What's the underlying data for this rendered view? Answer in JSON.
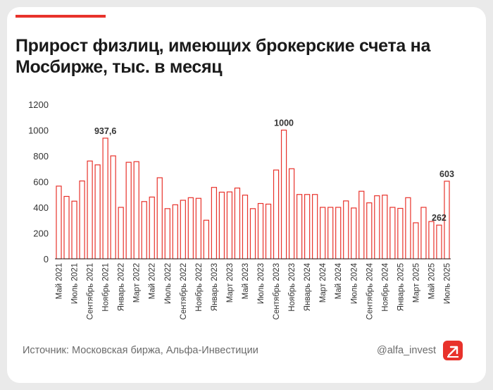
{
  "title": "Прирост физлиц, имеющих брокерские счета на Мосбирже, тыс. в месяц",
  "source": "Источник: Московская биржа, Альфа-Инвестиции",
  "handle": "@alfa_invest",
  "logo_icon": "alfa-logo-icon",
  "colors": {
    "accent": "#e8322b",
    "bar_stroke": "#e8322b",
    "bar_fill": "#ffffff",
    "axis_text": "#333333"
  },
  "chart_data": {
    "type": "bar",
    "title": "Прирост физлиц, имеющих брокерские счета на Мосбирже, тыс. в месяц",
    "xlabel": "",
    "ylabel": "",
    "ylim": [
      0,
      1200
    ],
    "yticks": [
      0,
      200,
      400,
      600,
      800,
      1000,
      1200
    ],
    "grid": false,
    "categories": [
      "Май 2021",
      "Июнь 2021",
      "Июль 2021",
      "Август 2021",
      "Сентябрь 2021",
      "Октябрь 2021",
      "Ноябрь 2021",
      "Декабрь 2021",
      "Январь 2022",
      "Февраль 2022",
      "Март 2022",
      "Апрель 2022",
      "Май 2022",
      "Июнь 2022",
      "Июль 2022",
      "Август 2022",
      "Сентябрь 2022",
      "Октябрь 2022",
      "Ноябрь 2022",
      "Декабрь 2022",
      "Январь 2023",
      "Февраль 2023",
      "Март 2023",
      "Апрель 2023",
      "Май 2023",
      "Июнь 2023",
      "Июль 2023",
      "Август 2023",
      "Сентябрь 2023",
      "Октябрь 2023",
      "Ноябрь 2023",
      "Декабрь 2023",
      "Январь 2024",
      "Февраль 2024",
      "Март 2024",
      "Апрель 2024",
      "Май 2024",
      "Июнь 2024",
      "Июль 2024",
      "Август 2024",
      "Сентябрь 2024",
      "Октябрь 2024",
      "Ноябрь 2024",
      "Декабрь 2024",
      "Январь 2025",
      "Февраль 2025",
      "Март 2025",
      "Апрель 2025",
      "Май 2025",
      "Июнь 2025",
      "Июль 2025"
    ],
    "tick_labels": [
      "Май 2021",
      "Июль 2021",
      "Сентябрь 2021",
      "Ноябрь 2021",
      "Январь 2022",
      "Март 2022",
      "Май 2022",
      "Июль 2022",
      "Сентябрь 2022",
      "Ноябрь 2022",
      "Январь 2023",
      "Март 2023",
      "Май 2023",
      "Июль 2023",
      "Сентябрь 2023",
      "Ноябрь 2023",
      "Январь 2024",
      "Март 2024",
      "Май 2024",
      "Июль 2024",
      "Сентябрь 2024",
      "Ноябрь 2024",
      "Январь 2025",
      "Март 2025",
      "Май 2025",
      "Июль 2025"
    ],
    "values": [
      565,
      485,
      448,
      605,
      760,
      730,
      937.6,
      800,
      400,
      750,
      755,
      445,
      480,
      630,
      390,
      420,
      455,
      475,
      470,
      300,
      555,
      518,
      520,
      550,
      495,
      390,
      430,
      425,
      690,
      1000,
      700,
      500,
      500,
      500,
      400,
      400,
      400,
      450,
      395,
      525,
      435,
      490,
      495,
      400,
      392,
      475,
      280,
      400,
      290,
      262,
      603
    ],
    "annotations": [
      {
        "category": "Ноябрь 2021",
        "label": "937,6"
      },
      {
        "category": "Октябрь 2023",
        "label": "1000"
      },
      {
        "category": "Июнь 2025",
        "label": "262"
      },
      {
        "category": "Июль 2025",
        "label": "603"
      }
    ]
  }
}
